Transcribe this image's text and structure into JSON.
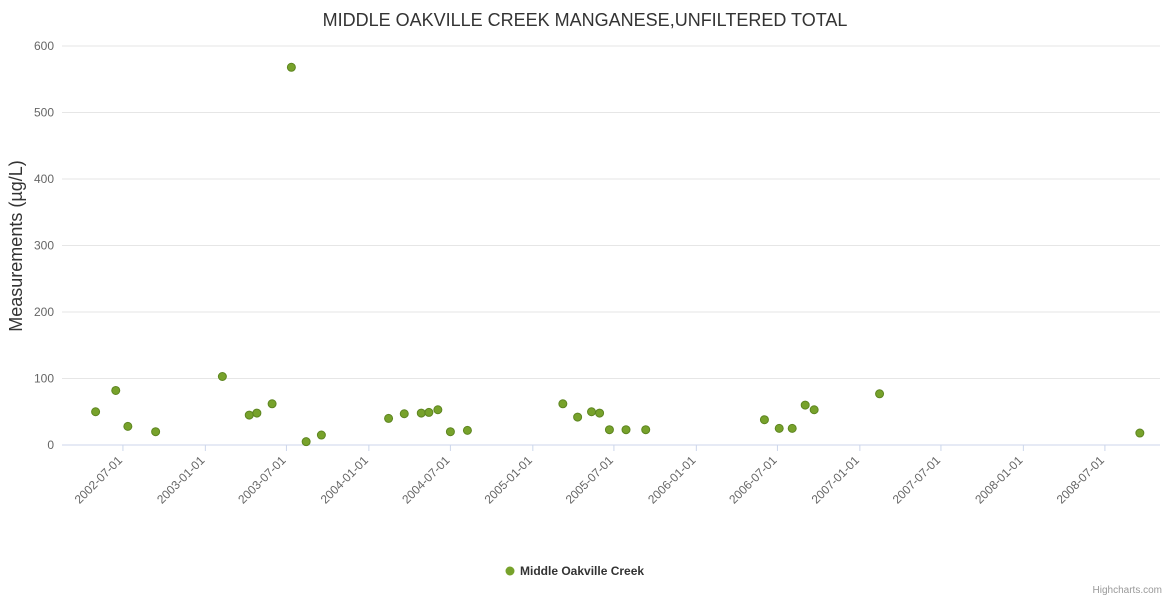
{
  "credits": "Highcharts.com",
  "colors": {
    "point": "#77a22b",
    "point_stroke": "#5d8520",
    "grid": "#e6e6e6",
    "axis_line": "#ccd6eb",
    "tick_text": "#666666",
    "title_text": "#333333"
  },
  "chart_data": {
    "type": "scatter",
    "title": "MIDDLE OAKVILLE CREEK MANGANESE,UNFILTERED TOTAL",
    "xlabel": "",
    "ylabel": "Measurements (µg/L)",
    "ylim": [
      0,
      600
    ],
    "yticks": [
      0,
      100,
      200,
      300,
      400,
      500,
      600
    ],
    "grid": true,
    "legend_position": "bottom",
    "x_range": [
      "2002-02-15",
      "2008-11-01"
    ],
    "xticks": [
      "2002-07-01",
      "2003-01-01",
      "2003-07-01",
      "2004-01-01",
      "2004-07-01",
      "2005-01-01",
      "2005-07-01",
      "2006-01-01",
      "2006-07-01",
      "2007-01-01",
      "2007-07-01",
      "2008-01-01",
      "2008-07-01"
    ],
    "series": [
      {
        "name": "Middle Oakville Creek",
        "points": [
          [
            "2002-05-01",
            50
          ],
          [
            "2002-06-15",
            82
          ],
          [
            "2002-07-12",
            28
          ],
          [
            "2002-09-12",
            20
          ],
          [
            "2003-02-08",
            103
          ],
          [
            "2003-04-09",
            45
          ],
          [
            "2003-04-26",
            48
          ],
          [
            "2003-05-30",
            62
          ],
          [
            "2003-07-12",
            568
          ],
          [
            "2003-08-14",
            5
          ],
          [
            "2003-09-17",
            15
          ],
          [
            "2004-02-14",
            40
          ],
          [
            "2004-03-20",
            47
          ],
          [
            "2004-04-27",
            48
          ],
          [
            "2004-05-14",
            49
          ],
          [
            "2004-06-03",
            53
          ],
          [
            "2004-07-01",
            20
          ],
          [
            "2004-08-08",
            22
          ],
          [
            "2005-03-09",
            62
          ],
          [
            "2005-04-11",
            42
          ],
          [
            "2005-05-12",
            50
          ],
          [
            "2005-05-30",
            48
          ],
          [
            "2005-06-21",
            23
          ],
          [
            "2005-07-28",
            23
          ],
          [
            "2005-09-10",
            23
          ],
          [
            "2006-06-02",
            38
          ],
          [
            "2006-07-05",
            25
          ],
          [
            "2006-08-03",
            25
          ],
          [
            "2006-09-01",
            60
          ],
          [
            "2006-09-21",
            53
          ],
          [
            "2007-02-14",
            77
          ],
          [
            "2008-09-17",
            18
          ]
        ]
      }
    ]
  }
}
